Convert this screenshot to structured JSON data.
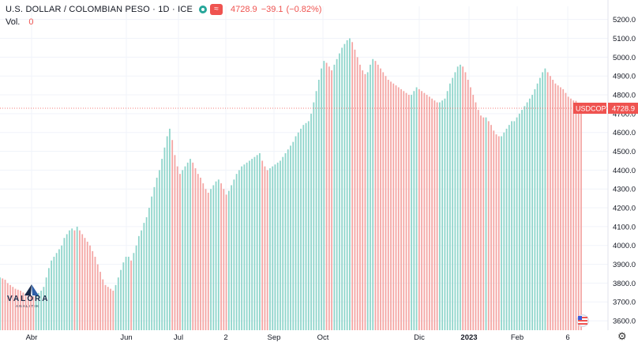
{
  "header": {
    "title": "U.S. DOLLAR / COLOMBIAN PESO · 1D · ICE",
    "market_dot_icon": "green-circle-icon",
    "compare_icon": "tilde-icon",
    "last_value": "4728.9",
    "change": "−39.1",
    "change_pct": "(−0.82%)"
  },
  "volume": {
    "label": "Vol.",
    "value": "0"
  },
  "price_tag": {
    "symbol": "USDCOP",
    "value": "4728.9"
  },
  "watermark": {
    "brand": "VALORA",
    "sub": "ANALITIK"
  },
  "colors": {
    "up": "#26a69a",
    "down": "#ef5350",
    "up_bar": "#8fd5cb",
    "down_bar": "#f4a6a4",
    "grid": "#f0f3fa"
  },
  "settings_icon": "gear-icon",
  "flag_icon": "us-flag-icon",
  "chart_data": {
    "type": "bar",
    "title": "U.S. DOLLAR / COLOMBIAN PESO · 1D · ICE",
    "xlabel": "",
    "ylabel": "",
    "ylim": [
      3550,
      5270
    ],
    "y_ticks": [
      3600,
      3700,
      3800,
      3900,
      4000,
      4100,
      4200,
      4300,
      4400,
      4500,
      4600,
      4700,
      4800,
      4900,
      5000,
      5100,
      5200
    ],
    "x_ticks": [
      "Abr",
      "Jun",
      "Jul",
      "2",
      "Sep",
      "Oct",
      "Dic",
      "2023",
      "Feb",
      "6"
    ],
    "last_price": 4728.9,
    "values": [
      3830,
      3825,
      3818,
      3800,
      3790,
      3780,
      3770,
      3765,
      3760,
      3750,
      3745,
      3740,
      3736,
      3730,
      3735,
      3748,
      3760,
      3780,
      3830,
      3880,
      3920,
      3940,
      3960,
      3980,
      4000,
      4040,
      4060,
      4080,
      4090,
      4080,
      4100,
      4080,
      4060,
      4040,
      4020,
      4000,
      3970,
      3940,
      3900,
      3860,
      3820,
      3790,
      3780,
      3770,
      3760,
      3790,
      3830,
      3870,
      3910,
      3940,
      3940,
      3920,
      3960,
      4000,
      4050,
      4080,
      4120,
      4150,
      4200,
      4260,
      4310,
      4360,
      4400,
      4460,
      4520,
      4580,
      4620,
      4560,
      4480,
      4420,
      4380,
      4400,
      4420,
      4440,
      4460,
      4440,
      4410,
      4380,
      4360,
      4330,
      4300,
      4280,
      4300,
      4320,
      4340,
      4350,
      4330,
      4300,
      4270,
      4290,
      4320,
      4350,
      4380,
      4400,
      4420,
      4430,
      4440,
      4450,
      4460,
      4470,
      4480,
      4490,
      4450,
      4420,
      4400,
      4410,
      4420,
      4430,
      4440,
      4450,
      4470,
      4490,
      4510,
      4530,
      4550,
      4580,
      4600,
      4620,
      4640,
      4650,
      4660,
      4700,
      4760,
      4820,
      4880,
      4940,
      4980,
      4970,
      4950,
      4930,
      4960,
      4990,
      5020,
      5050,
      5070,
      5090,
      5100,
      5080,
      5040,
      5000,
      4960,
      4930,
      4910,
      4920,
      4960,
      4990,
      4980,
      4960,
      4940,
      4920,
      4900,
      4880,
      4870,
      4860,
      4850,
      4840,
      4830,
      4820,
      4810,
      4800,
      4800,
      4820,
      4840,
      4830,
      4820,
      4810,
      4800,
      4790,
      4780,
      4770,
      4760,
      4760,
      4770,
      4780,
      4820,
      4860,
      4890,
      4920,
      4950,
      4960,
      4950,
      4920,
      4880,
      4840,
      4800,
      4760,
      4720,
      4690,
      4680,
      4680,
      4660,
      4640,
      4610,
      4590,
      4580,
      4580,
      4600,
      4620,
      4640,
      4660,
      4660,
      4680,
      4700,
      4720,
      4740,
      4760,
      4780,
      4800,
      4830,
      4860,
      4890,
      4920,
      4940,
      4920,
      4900,
      4880,
      4860,
      4850,
      4840,
      4830,
      4810,
      4790,
      4780,
      4770,
      4768,
      4750,
      4728.9
    ]
  }
}
